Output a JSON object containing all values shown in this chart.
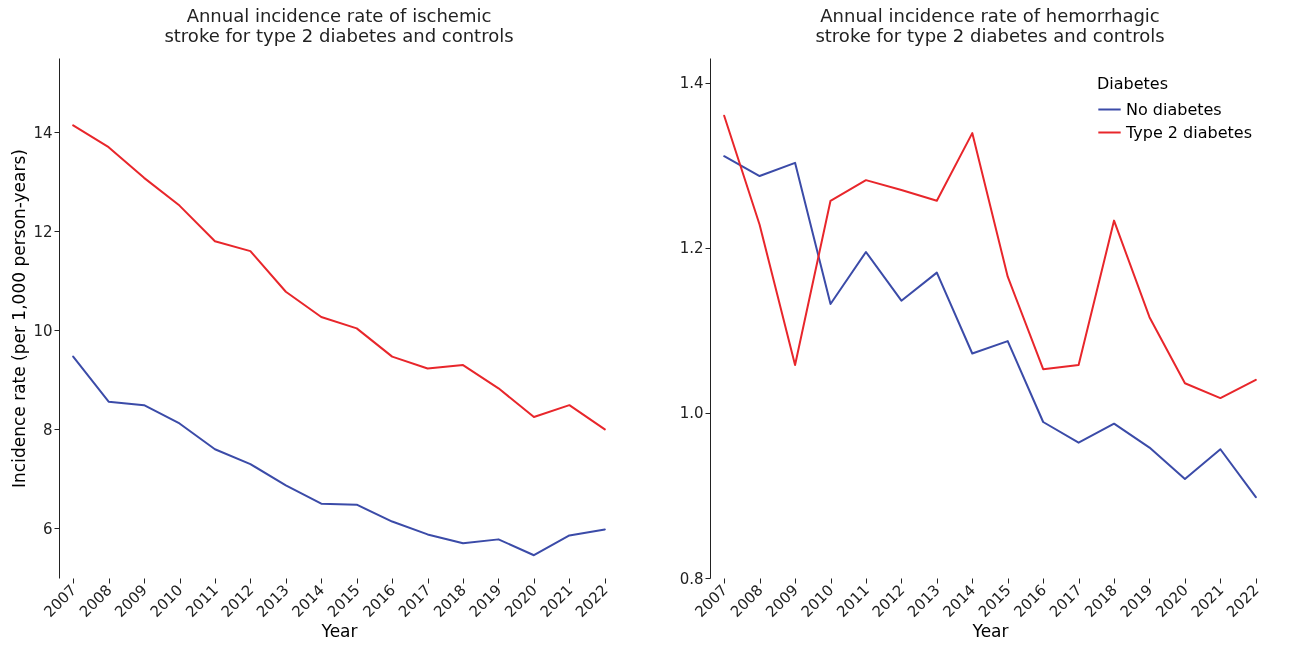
{
  "chart_data": [
    {
      "type": "line",
      "title": "Annual incidence rate of ischemic stroke for type 2 diabetes and controls",
      "xlabel": "Year",
      "ylabel": "Incidence rate (per 1,000 person-years)",
      "categories": [
        "2007",
        "2008",
        "2009",
        "2010",
        "2011",
        "2012",
        "2013",
        "2014",
        "2015",
        "2016",
        "2017",
        "2018",
        "2019",
        "2020",
        "2021",
        "2022"
      ],
      "ylim": [
        5,
        15.5
      ],
      "yticks": [
        6,
        8,
        10,
        12,
        14
      ],
      "grid": false,
      "legend": false,
      "series": [
        {
          "color": "#3b4ba8",
          "values": [
            9.47,
            8.56,
            8.49,
            8.12,
            7.6,
            7.3,
            6.87,
            6.5,
            6.48,
            6.14,
            5.88,
            5.7,
            5.78,
            5.46,
            5.86,
            5.98
          ]
        },
        {
          "color": "#e8262b",
          "values": [
            14.14,
            13.7,
            13.08,
            12.52,
            11.8,
            11.6,
            10.78,
            10.27,
            10.04,
            9.47,
            9.23,
            9.3,
            8.83,
            8.25,
            8.49,
            8.0
          ]
        }
      ]
    },
    {
      "type": "line",
      "title": "Annual incidence rate of hemorrhagic stroke for type 2 diabetes and controls",
      "xlabel": "Year",
      "legend_title": "Diabetes",
      "categories": [
        "2007",
        "2008",
        "2009",
        "2010",
        "2011",
        "2012",
        "2013",
        "2014",
        "2015",
        "2016",
        "2017",
        "2018",
        "2019",
        "2020",
        "2021",
        "2022"
      ],
      "ylim": [
        0.8,
        1.43
      ],
      "yticks": [
        {
          "value": 0.8,
          "label": "0.8"
        },
        {
          "value": 1.0,
          "label": "1.0"
        },
        {
          "value": 1.2,
          "label": "1.2"
        },
        {
          "value": 1.4,
          "label": "1.4"
        }
      ],
      "grid": false,
      "legend": "top right",
      "series": [
        {
          "name": "No diabetes",
          "color": "#3b4ba8",
          "values": [
            1.311,
            1.287,
            1.303,
            1.132,
            1.195,
            1.136,
            1.17,
            1.072,
            1.087,
            0.989,
            0.964,
            0.987,
            0.958,
            0.92,
            0.956,
            0.898
          ]
        },
        {
          "name": "Type 2 diabetes",
          "color": "#e8262b",
          "values": [
            1.36,
            1.228,
            1.058,
            1.257,
            1.282,
            1.27,
            1.257,
            1.339,
            1.165,
            1.053,
            1.058,
            1.233,
            1.116,
            1.036,
            1.018,
            1.04
          ]
        }
      ]
    }
  ]
}
